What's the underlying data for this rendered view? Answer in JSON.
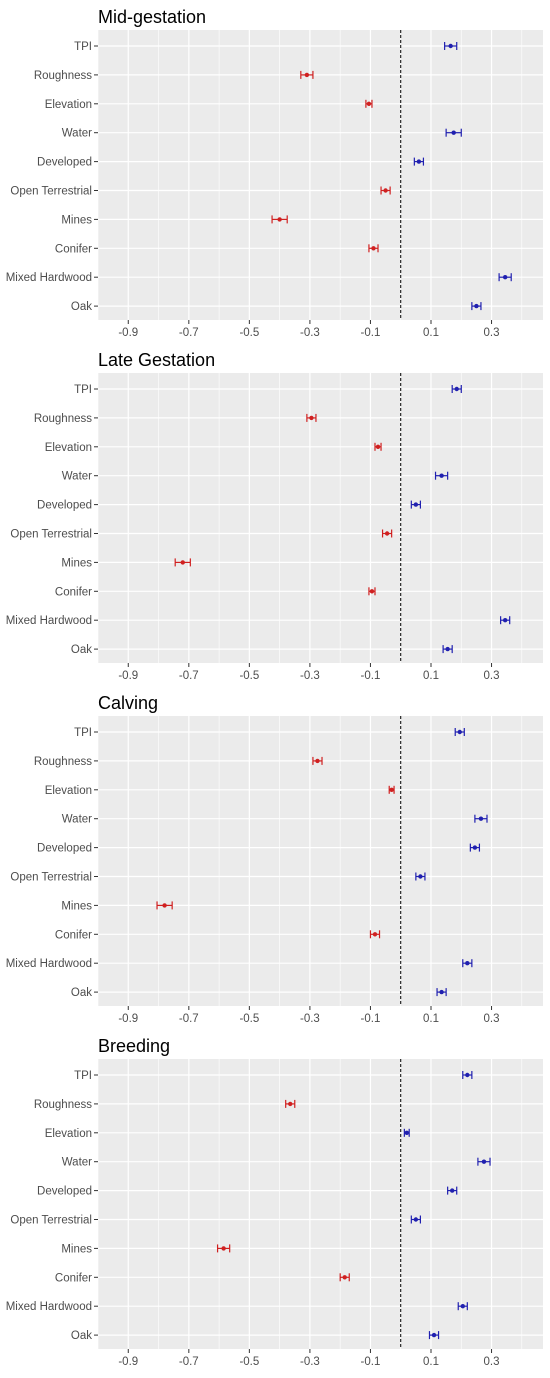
{
  "chart_data": [
    {
      "type": "forest",
      "title": "Mid-gestation",
      "categories": [
        "TPI",
        "Roughness",
        "Elevation",
        "Water",
        "Developed",
        "Open Terrestrial",
        "Mines",
        "Conifer",
        "Mixed Hardwood",
        "Oak"
      ],
      "estimate": [
        0.165,
        -0.31,
        -0.105,
        0.175,
        0.06,
        -0.05,
        -0.4,
        -0.09,
        0.345,
        0.25
      ],
      "lower": [
        0.145,
        -0.33,
        -0.115,
        0.15,
        0.045,
        -0.065,
        -0.425,
        -0.105,
        0.325,
        0.235
      ],
      "upper": [
        0.185,
        -0.29,
        -0.095,
        0.2,
        0.075,
        -0.035,
        -0.375,
        -0.075,
        0.365,
        0.265
      ],
      "xlim": [
        -1.0,
        0.47
      ],
      "xticks": [
        -0.9,
        -0.7,
        -0.5,
        -0.3,
        -0.1,
        0.1,
        0.3
      ],
      "reference_line": 0.0,
      "grid": true
    },
    {
      "type": "forest",
      "title": "Late Gestation",
      "categories": [
        "TPI",
        "Roughness",
        "Elevation",
        "Water",
        "Developed",
        "Open Terrestrial",
        "Mines",
        "Conifer",
        "Mixed Hardwood",
        "Oak"
      ],
      "estimate": [
        0.185,
        -0.295,
        -0.075,
        0.135,
        0.05,
        -0.045,
        -0.72,
        -0.095,
        0.345,
        0.155
      ],
      "lower": [
        0.17,
        -0.31,
        -0.085,
        0.115,
        0.035,
        -0.06,
        -0.745,
        -0.105,
        0.33,
        0.14
      ],
      "upper": [
        0.2,
        -0.28,
        -0.065,
        0.155,
        0.065,
        -0.03,
        -0.695,
        -0.085,
        0.36,
        0.17
      ],
      "xlim": [
        -1.0,
        0.47
      ],
      "xticks": [
        -0.9,
        -0.7,
        -0.5,
        -0.3,
        -0.1,
        0.1,
        0.3
      ],
      "reference_line": 0.0,
      "grid": true
    },
    {
      "type": "forest",
      "title": "Calving",
      "categories": [
        "TPI",
        "Roughness",
        "Elevation",
        "Water",
        "Developed",
        "Open Terrestrial",
        "Mines",
        "Conifer",
        "Mixed Hardwood",
        "Oak"
      ],
      "estimate": [
        0.195,
        -0.275,
        -0.03,
        0.265,
        0.245,
        0.065,
        -0.78,
        -0.085,
        0.22,
        0.135
      ],
      "lower": [
        0.18,
        -0.29,
        -0.038,
        0.245,
        0.23,
        0.05,
        -0.805,
        -0.1,
        0.205,
        0.12
      ],
      "upper": [
        0.21,
        -0.26,
        -0.022,
        0.285,
        0.26,
        0.08,
        -0.755,
        -0.07,
        0.235,
        0.15
      ],
      "xlim": [
        -1.0,
        0.47
      ],
      "xticks": [
        -0.9,
        -0.7,
        -0.5,
        -0.3,
        -0.1,
        0.1,
        0.3
      ],
      "reference_line": 0.0,
      "grid": true
    },
    {
      "type": "forest",
      "title": "Breeding",
      "categories": [
        "TPI",
        "Roughness",
        "Elevation",
        "Water",
        "Developed",
        "Open Terrestrial",
        "Mines",
        "Conifer",
        "Mixed Hardwood",
        "Oak"
      ],
      "estimate": [
        0.22,
        -0.365,
        0.02,
        0.275,
        0.17,
        0.05,
        -0.585,
        -0.185,
        0.205,
        0.11
      ],
      "lower": [
        0.205,
        -0.38,
        0.012,
        0.255,
        0.155,
        0.035,
        -0.605,
        -0.2,
        0.19,
        0.095
      ],
      "upper": [
        0.235,
        -0.35,
        0.028,
        0.295,
        0.185,
        0.065,
        -0.565,
        -0.17,
        0.22,
        0.125
      ],
      "xlim": [
        -1.0,
        0.47
      ],
      "xticks": [
        -0.9,
        -0.7,
        -0.5,
        -0.3,
        -0.1,
        0.1,
        0.3
      ],
      "reference_line": 0.0,
      "grid": true
    }
  ],
  "colors": {
    "positive": "#2020b0",
    "negative": "#d02020",
    "panel_background": "#ebebeb",
    "gridline": "#ffffff",
    "axis_text": "#4d4d4d",
    "title_text": "#000000"
  }
}
